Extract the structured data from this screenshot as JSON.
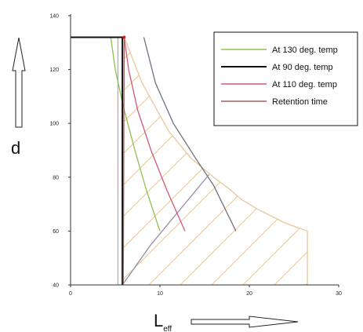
{
  "chart_data": {
    "type": "line",
    "title": "",
    "xlabel": "L",
    "xlabel_sub": "eff",
    "ylabel": "d",
    "xlim": [
      0,
      30
    ],
    "ylim": [
      40,
      140
    ],
    "x_ticks": [
      0,
      10,
      20,
      30
    ],
    "y_ticks": [
      40,
      60,
      80,
      100,
      120,
      140
    ],
    "grid": false,
    "legend_position": "top-right",
    "series": [
      {
        "name": "At 130 deg. temp",
        "color": "#90c050",
        "points": [
          [
            4.5,
            132
          ],
          [
            5,
            120
          ],
          [
            6,
            105
          ],
          [
            7.2,
            90
          ],
          [
            8.5,
            75
          ],
          [
            10,
            60
          ]
        ]
      },
      {
        "name": "At 90 deg. temp",
        "color": "#111111",
        "points": [
          [
            0,
            132
          ],
          [
            5.8,
            132
          ],
          [
            5.8,
            40
          ]
        ]
      },
      {
        "name": "At 110 deg. temp",
        "color": "#d05878",
        "points": [
          [
            6,
            132
          ],
          [
            6.5,
            120
          ],
          [
            7.5,
            105
          ],
          [
            9,
            90
          ],
          [
            10.8,
            75
          ],
          [
            12.8,
            60
          ]
        ]
      },
      {
        "name": "Retention time",
        "color": "#a06060",
        "points": [
          [
            6,
            132
          ],
          [
            6,
            128
          ],
          [
            5.9,
            40
          ]
        ]
      }
    ],
    "other_lines": [
      {
        "color": "#707080",
        "points": [
          [
            8.2,
            132
          ],
          [
            9.5,
            115
          ],
          [
            11.5,
            100
          ],
          [
            14,
            87
          ],
          [
            16,
            77
          ],
          [
            18.5,
            60
          ]
        ]
      },
      {
        "color": "#9090a8",
        "points": [
          [
            5.8,
            40
          ],
          [
            9,
            55
          ],
          [
            12,
            67
          ],
          [
            15.5,
            81
          ]
        ]
      },
      {
        "color": "#b0b0b0",
        "points": [
          [
            5.3,
            40
          ],
          [
            5.3,
            132
          ]
        ]
      }
    ],
    "envelope": {
      "color": "#e8c89a",
      "points": [
        [
          6,
          132
        ],
        [
          8,
          115
        ],
        [
          10,
          103
        ],
        [
          11,
          97
        ],
        [
          13.5,
          87
        ],
        [
          16,
          80
        ],
        [
          18,
          75
        ],
        [
          19,
          72
        ],
        [
          21,
          68
        ],
        [
          24,
          63
        ],
        [
          26.5,
          60
        ],
        [
          26.5,
          40
        ]
      ]
    }
  }
}
